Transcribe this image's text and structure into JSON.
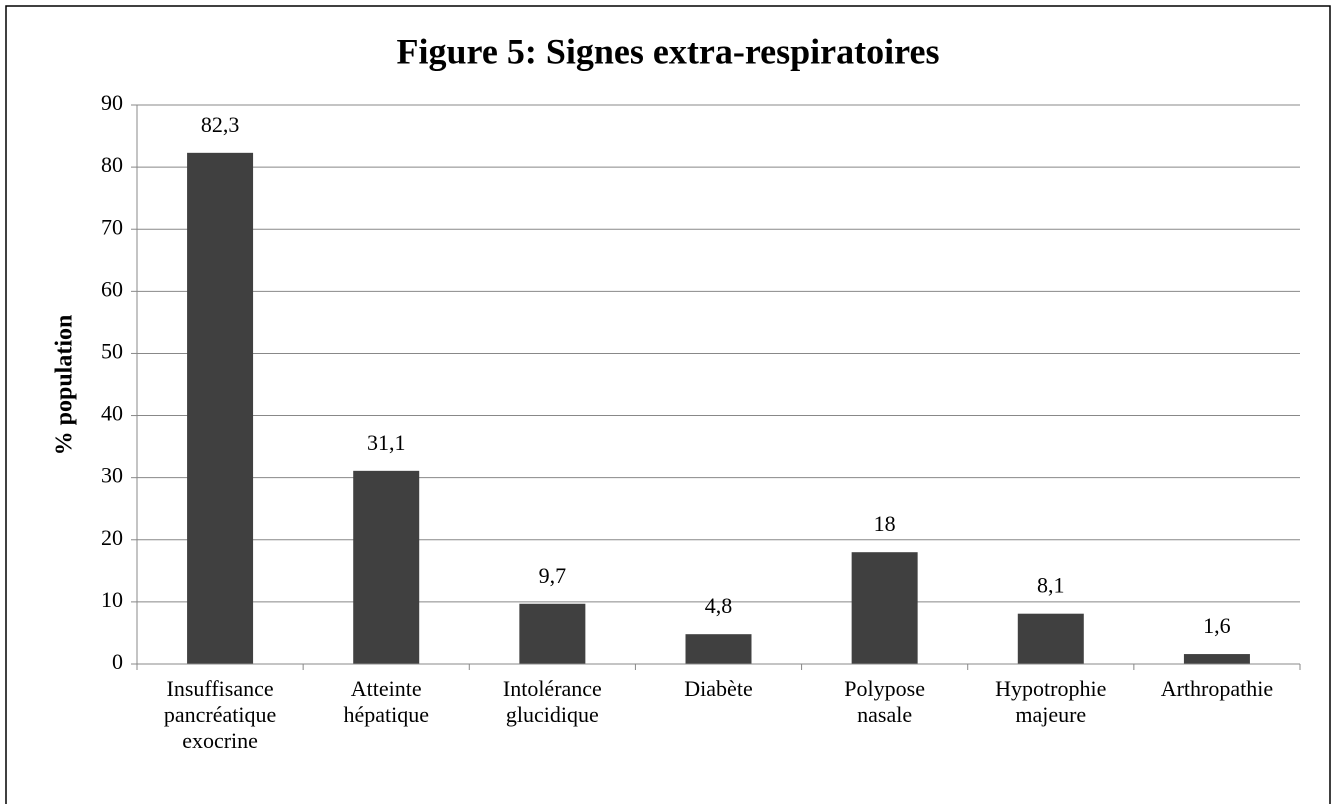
{
  "chart_data": {
    "type": "bar",
    "title": "Figure 5: Signes extra-respiratoires",
    "y_label": "% population",
    "categories": [
      "Insuffisance pancréatique exocrine",
      "Atteinte hépatique",
      "Intolérance glucidique",
      "Diabète",
      "Polypose nasale",
      "Hypotrophie majeure",
      "Arthropathie"
    ],
    "values": [
      82.3,
      31.1,
      9.7,
      4.8,
      18,
      8.1,
      1.6
    ],
    "value_labels": [
      "82,3",
      "31,1",
      "9,7",
      "4,8",
      "18",
      "8,1",
      "1,6"
    ],
    "color": "#404040",
    "ylim": [
      0,
      90
    ],
    "yticks": [
      0,
      10,
      20,
      30,
      40,
      50,
      60,
      70,
      80,
      90
    ],
    "grid": true
  }
}
